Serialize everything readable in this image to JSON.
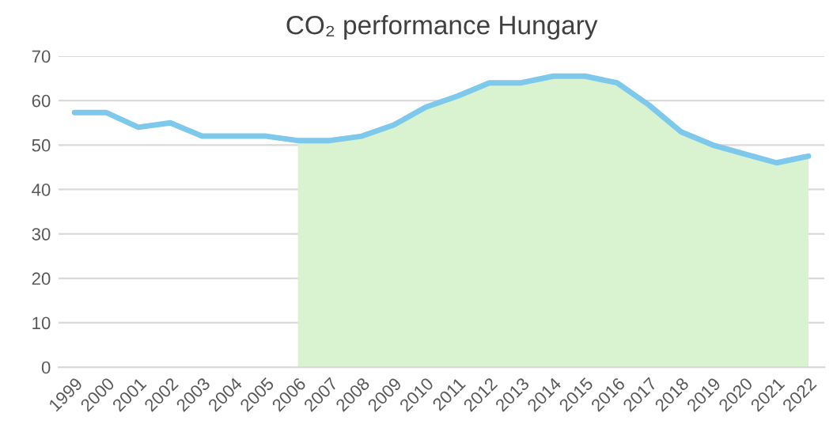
{
  "chart_data": {
    "type": "line",
    "title": "CO₂ performance Hungary",
    "categories": [
      "1999",
      "2000",
      "2001",
      "2002",
      "2003",
      "2004",
      "2005",
      "2006",
      "2007",
      "2008",
      "2009",
      "2010",
      "2011",
      "2012",
      "2013",
      "2014",
      "2015",
      "2016",
      "2017",
      "2018",
      "2019",
      "2020",
      "2021",
      "2022"
    ],
    "series": [
      {
        "type": "area",
        "color": "#d9f2d0",
        "values": [
          null,
          null,
          null,
          null,
          null,
          null,
          null,
          51,
          51,
          52,
          54.5,
          58.5,
          61,
          64,
          64,
          65.5,
          65.5,
          64,
          59,
          53,
          50,
          48,
          46,
          47.5
        ]
      },
      {
        "color": "#7ec8ec",
        "values": [
          57.3,
          57.3,
          54,
          55,
          52,
          52,
          52,
          51,
          51,
          52,
          54.5,
          58.5,
          61,
          64,
          64,
          65.5,
          65.5,
          64,
          59,
          53,
          50,
          48,
          46,
          47.5
        ]
      }
    ],
    "ylim": [
      0,
      70
    ],
    "yticks": [
      0,
      10,
      20,
      30,
      40,
      50,
      60,
      70
    ],
    "grid": "y",
    "legend": false
  }
}
